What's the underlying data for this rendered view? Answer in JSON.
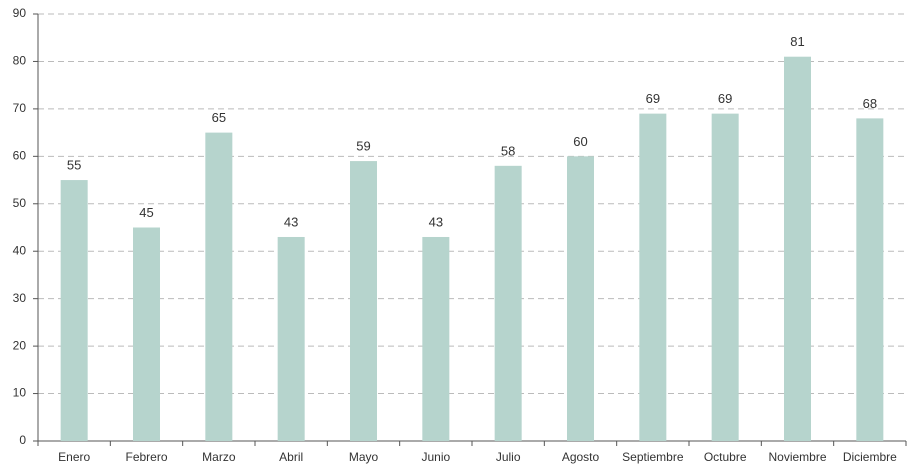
{
  "chart_data": {
    "type": "bar",
    "categories": [
      "Enero",
      "Febrero",
      "Marzo",
      "Abril",
      "Mayo",
      "Junio",
      "Julio",
      "Agosto",
      "Septiembre",
      "Octubre",
      "Noviembre",
      "Diciembre"
    ],
    "values": [
      55,
      45,
      65,
      43,
      59,
      43,
      58,
      60,
      69,
      69,
      81,
      68
    ],
    "color": "#b6d4cd",
    "ylim": [
      0,
      90
    ],
    "yticks": [
      0,
      10,
      20,
      30,
      40,
      50,
      60,
      70,
      80,
      90
    ],
    "grid": true
  }
}
